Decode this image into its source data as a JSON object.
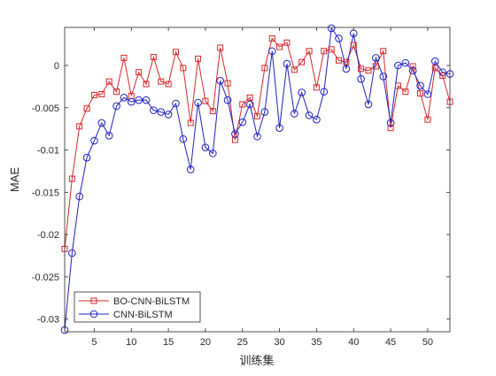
{
  "chart_data": {
    "type": "line",
    "title": "",
    "xlabel": "训练集",
    "ylabel": "MAE",
    "xlim": [
      1,
      53
    ],
    "ylim": [
      -0.0315,
      0.0045
    ],
    "xticks": [
      5,
      10,
      15,
      20,
      25,
      30,
      35,
      40,
      45,
      50
    ],
    "yticks": [
      -0.03,
      -0.025,
      -0.02,
      -0.015,
      -0.01,
      -0.005,
      0
    ],
    "ytick_labels": [
      "-0.03",
      "-0.025",
      "-0.02",
      "-0.015",
      "-0.01",
      "-0.005",
      "0"
    ],
    "grid": false,
    "legend_position": "bottom-left",
    "x": [
      1,
      2,
      3,
      4,
      5,
      6,
      7,
      8,
      9,
      10,
      11,
      12,
      13,
      14,
      15,
      16,
      17,
      18,
      19,
      20,
      21,
      22,
      23,
      24,
      25,
      26,
      27,
      28,
      29,
      30,
      31,
      32,
      33,
      34,
      35,
      36,
      37,
      38,
      39,
      40,
      41,
      42,
      43,
      44,
      45,
      46,
      47,
      48,
      49,
      50,
      51,
      52,
      53
    ],
    "series": [
      {
        "name": "BO-CNN-BiLSTM",
        "color": "#d62728",
        "marker": "square",
        "values": [
          -0.0217,
          -0.0134,
          -0.0072,
          -0.0051,
          -0.0035,
          -0.0034,
          -0.0019,
          -0.0031,
          0.0009,
          -0.0036,
          -0.0008,
          -0.0022,
          0.001,
          -0.0019,
          -0.0022,
          0.0016,
          -0.0003,
          -0.0068,
          0.0008,
          -0.0042,
          -0.0054,
          0.0021,
          -0.0021,
          -0.0088,
          -0.0046,
          -0.0038,
          -0.006,
          -0.0003,
          0.0032,
          0.0022,
          0.0027,
          -0.0005,
          0.0004,
          0.0017,
          -0.0026,
          0.0017,
          0.0019,
          0.0006,
          0.0004,
          0.0024,
          -0.0004,
          -0.0006,
          -0.0001,
          0.0017,
          -0.0074,
          -0.0024,
          -0.0031,
          -0.0001,
          -0.0033,
          -0.0064,
          -0.0003,
          -0.0012,
          -0.0043
        ]
      },
      {
        "name": "CNN-BiLSTM",
        "color": "#1f1fbf",
        "marker": "circle",
        "values": [
          -0.0313,
          -0.0222,
          -0.0155,
          -0.0109,
          -0.0089,
          -0.0068,
          -0.0083,
          -0.0048,
          -0.0038,
          -0.0043,
          -0.0041,
          -0.0041,
          -0.0053,
          -0.0055,
          -0.0058,
          -0.0045,
          -0.0087,
          -0.0123,
          -0.0044,
          -0.0097,
          -0.0104,
          -0.0018,
          -0.0041,
          -0.0081,
          -0.0067,
          -0.0046,
          -0.0084,
          -0.0055,
          0.0017,
          -0.0074,
          0.0002,
          -0.0057,
          -0.0032,
          -0.0059,
          -0.0064,
          -0.0031,
          0.0044,
          0.0032,
          -0.0004,
          0.0038,
          -0.0016,
          -0.0046,
          0.0009,
          -0.0013,
          -0.0068,
          0.0,
          0.0003,
          -0.0006,
          -0.0024,
          -0.0034,
          0.0005,
          -0.0008,
          -0.001
        ]
      }
    ]
  }
}
